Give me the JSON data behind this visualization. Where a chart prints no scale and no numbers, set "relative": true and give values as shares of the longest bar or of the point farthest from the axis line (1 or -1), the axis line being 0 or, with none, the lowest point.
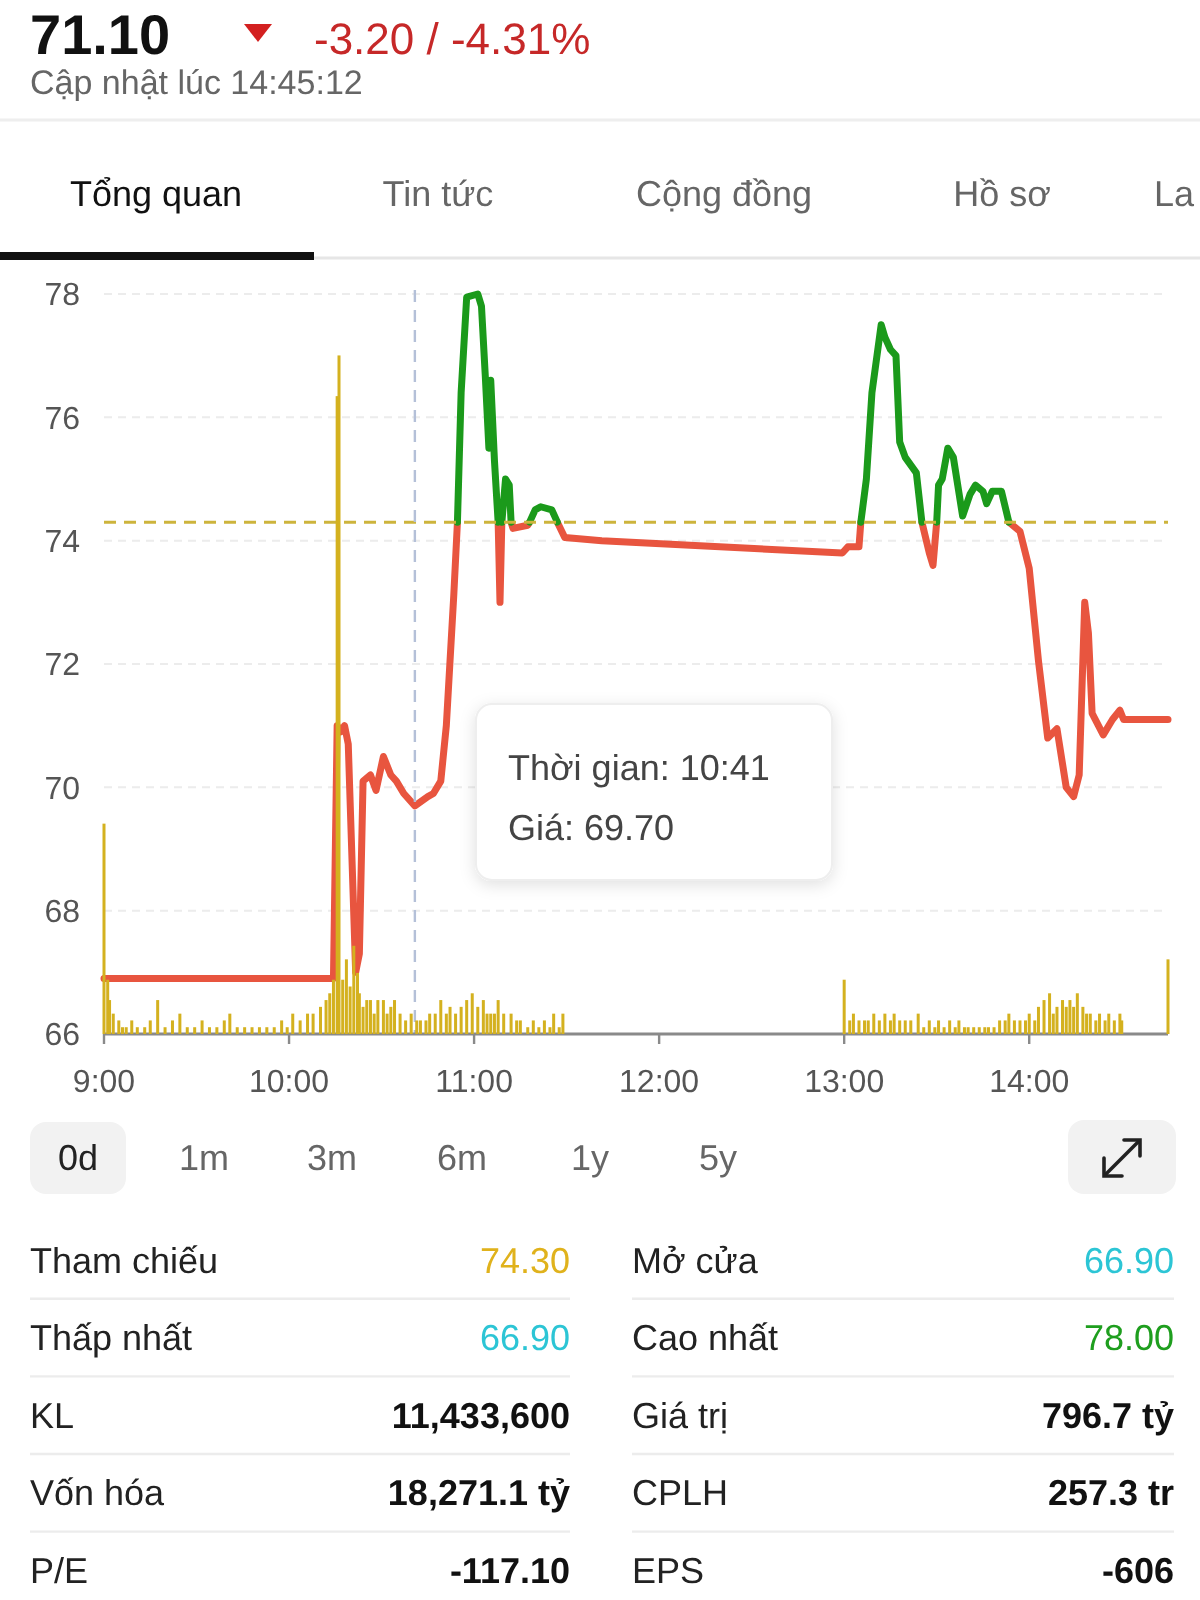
{
  "chart_data": [
    {
      "type": "other",
      "annotations": [
        "71.10",
        "-3.20 / -4.31%",
        "Cập nhật lúc 14:45:12",
        "Tổng quan",
        "Tin tức",
        "Cộng đồng",
        "Hồ sơ",
        "La"
      ]
    },
    {
      "type": "line",
      "xlim": [
        9,
        14.75
      ],
      "xticks": [
        {
          "value": 9,
          "label": "9:00"
        },
        {
          "value": 10,
          "label": "10:00"
        },
        {
          "value": 11,
          "label": "11:00"
        },
        {
          "value": 12,
          "label": "12:00"
        },
        {
          "value": 13,
          "label": "13:00"
        },
        {
          "value": 14,
          "label": "14:00"
        }
      ],
      "ylim": [
        66,
        78
      ],
      "yticks": [
        66,
        68,
        70,
        72,
        74,
        76,
        78
      ],
      "grid": "y",
      "series": [
        {
          "color": "#e8553f",
          "x": [
            9.0,
            10.24,
            10.26,
            10.28,
            10.3,
            10.32,
            10.36,
            10.38,
            10.4,
            10.44,
            10.47,
            10.51,
            10.55,
            10.58,
            10.62,
            10.68,
            10.75,
            10.78,
            10.82,
            10.85,
            10.89,
            10.91,
            11.0,
            11.13,
            11.14,
            11.15,
            11.17,
            11.2,
            11.21,
            11.29,
            11.3,
            11.38,
            11.45,
            11.49,
            11.69,
            12.99,
            13.02,
            13.08,
            13.09,
            13.25,
            13.42,
            13.46,
            13.48,
            13.5,
            13.7,
            13.89,
            13.95,
            14.0,
            14.05,
            14.1,
            14.15,
            14.2,
            14.24,
            14.27,
            14.3,
            14.32,
            14.34,
            14.4,
            14.45,
            14.49,
            14.51,
            14.75
          ],
          "values": [
            66.9,
            66.9,
            71.0,
            70.9,
            71.0,
            70.7,
            67.0,
            67.3,
            70.1,
            70.2,
            69.95,
            70.5,
            70.2,
            70.1,
            69.9,
            69.7,
            69.85,
            69.9,
            70.1,
            71.0,
            73.1,
            74.3,
            null,
            74.3,
            73.0,
            74.3,
            null,
            74.3,
            74.2,
            74.25,
            74.3,
            null,
            74.3,
            74.05,
            74.0,
            73.8,
            73.9,
            73.9,
            74.3,
            null,
            74.3,
            73.8,
            73.6,
            74.3,
            null,
            74.3,
            74.15,
            73.55,
            72.05,
            70.8,
            70.95,
            70.0,
            69.85,
            70.2,
            73.0,
            72.5,
            71.2,
            70.85,
            71.1,
            71.25,
            71.1,
            71.1
          ]
        },
        {
          "color": "#1b9a1b",
          "x": [
            10.91,
            10.93,
            10.96,
            11.02,
            11.04,
            11.06,
            11.08,
            11.09,
            11.11,
            11.13,
            11.14,
            11.15,
            11.17,
            11.19,
            11.2,
            11.25,
            11.3,
            11.33,
            11.36,
            11.42,
            11.45,
            12.5,
            13.09,
            13.12,
            13.15,
            13.2,
            13.22,
            13.25,
            13.28,
            13.3,
            13.33,
            13.39,
            13.42,
            13.46,
            13.5,
            13.51,
            13.53,
            13.56,
            13.59,
            13.64,
            13.68,
            13.71,
            13.75,
            13.77,
            13.8,
            13.85,
            13.89
          ],
          "values": [
            74.3,
            76.4,
            77.95,
            78.0,
            77.8,
            76.7,
            75.5,
            76.6,
            75.3,
            74.3,
            null,
            74.3,
            75.0,
            74.9,
            74.3,
            null,
            74.3,
            74.5,
            74.55,
            74.5,
            74.3,
            null,
            74.3,
            75.0,
            76.4,
            77.5,
            77.3,
            77.1,
            77.0,
            75.6,
            75.35,
            75.1,
            74.3,
            null,
            74.3,
            74.9,
            75.0,
            75.5,
            75.35,
            74.4,
            74.75,
            74.9,
            74.8,
            74.6,
            74.8,
            74.8,
            74.3
          ]
        }
      ],
      "ref_lines": [
        {
          "axis": "y",
          "value": 74.3,
          "color": "#cdb43c",
          "line_style": "dashed"
        },
        {
          "axis": "x",
          "value": 10.68,
          "color": "#b4c0d8",
          "line_style": "dashed"
        }
      ],
      "annotations": [
        "Thời gian: 10:41",
        "Giá: 69.70"
      ]
    },
    {
      "type": "bar",
      "relative": true,
      "xlim": [
        9,
        14.75
      ],
      "color": "#d4b11f",
      "x": [
        9.0,
        9.02,
        9.03,
        9.05,
        9.08,
        9.1,
        9.12,
        9.15,
        9.18,
        9.22,
        9.25,
        9.29,
        9.33,
        9.37,
        9.41,
        9.45,
        9.49,
        9.53,
        9.57,
        9.61,
        9.65,
        9.68,
        9.72,
        9.76,
        9.8,
        9.84,
        9.88,
        9.92,
        9.96,
        9.99,
        10.02,
        10.06,
        10.1,
        10.13,
        10.17,
        10.2,
        10.22,
        10.24,
        10.26,
        10.27,
        10.29,
        10.31,
        10.33,
        10.35,
        10.37,
        10.38,
        10.4,
        10.42,
        10.44,
        10.46,
        10.48,
        10.51,
        10.53,
        10.55,
        10.57,
        10.6,
        10.63,
        10.66,
        10.69,
        10.71,
        10.74,
        10.76,
        10.79,
        10.82,
        10.85,
        10.87,
        10.9,
        10.93,
        10.96,
        10.99,
        11.02,
        11.05,
        11.07,
        11.09,
        11.11,
        11.13,
        11.16,
        11.2,
        11.23,
        11.25,
        11.29,
        11.32,
        11.35,
        11.38,
        11.41,
        11.43,
        11.46,
        11.48,
        13.0,
        13.03,
        13.05,
        13.08,
        13.11,
        13.13,
        13.16,
        13.19,
        13.22,
        13.25,
        13.27,
        13.3,
        13.33,
        13.36,
        13.4,
        13.43,
        13.46,
        13.49,
        13.51,
        13.54,
        13.57,
        13.6,
        13.62,
        13.65,
        13.67,
        13.7,
        13.73,
        13.76,
        13.78,
        13.81,
        13.84,
        13.87,
        13.89,
        13.92,
        13.95,
        13.98,
        14.0,
        14.03,
        14.05,
        14.08,
        14.11,
        14.13,
        14.15,
        14.18,
        14.2,
        14.22,
        14.24,
        14.26,
        14.29,
        14.31,
        14.33,
        14.36,
        14.38,
        14.41,
        14.43,
        14.46,
        14.49,
        14.5,
        14.75
      ],
      "values": [
        0.31,
        0.08,
        0.05,
        0.03,
        0.02,
        0.01,
        0.01,
        0.02,
        0.01,
        0.01,
        0.02,
        0.05,
        0.01,
        0.02,
        0.03,
        0.01,
        0.01,
        0.02,
        0.01,
        0.01,
        0.02,
        0.03,
        0.01,
        0.01,
        0.01,
        0.01,
        0.01,
        0.01,
        0.02,
        0.01,
        0.03,
        0.02,
        0.03,
        0.03,
        0.04,
        0.05,
        0.06,
        0.08,
        0.94,
        1.0,
        0.08,
        0.11,
        0.07,
        0.13,
        0.09,
        0.06,
        0.04,
        0.05,
        0.05,
        0.03,
        0.05,
        0.05,
        0.03,
        0.04,
        0.05,
        0.03,
        0.02,
        0.03,
        0.02,
        0.02,
        0.02,
        0.03,
        0.03,
        0.05,
        0.03,
        0.04,
        0.03,
        0.04,
        0.05,
        0.06,
        0.04,
        0.05,
        0.03,
        0.03,
        0.03,
        0.05,
        0.03,
        0.03,
        0.02,
        0.02,
        0.01,
        0.02,
        0.01,
        0.02,
        0.01,
        0.03,
        0.01,
        0.03,
        0.08,
        0.02,
        0.03,
        0.02,
        0.02,
        0.02,
        0.03,
        0.02,
        0.03,
        0.02,
        0.03,
        0.02,
        0.02,
        0.02,
        0.03,
        0.01,
        0.02,
        0.01,
        0.02,
        0.01,
        0.02,
        0.01,
        0.02,
        0.01,
        0.01,
        0.01,
        0.01,
        0.01,
        0.01,
        0.01,
        0.02,
        0.02,
        0.03,
        0.02,
        0.02,
        0.02,
        0.03,
        0.02,
        0.04,
        0.05,
        0.06,
        0.03,
        0.04,
        0.05,
        0.04,
        0.05,
        0.04,
        0.06,
        0.04,
        0.03,
        0.03,
        0.02,
        0.03,
        0.02,
        0.03,
        0.02,
        0.03,
        0.02,
        0.11
      ]
    },
    {
      "type": "other",
      "annotations": [
        "0d",
        "1m",
        "3m",
        "6m",
        "1y",
        "5y"
      ],
      "categories": [
        "Tham chiếu",
        "Mở cửa",
        "Thấp nhất",
        "Cao nhất",
        "KL",
        "Giá trị",
        "Vốn hóa",
        "CPLH",
        "P/E",
        "EPS"
      ],
      "value_labels": [
        "74.30",
        "66.90",
        "66.90",
        "78.00",
        "11,433,600",
        "796.7 tỷ",
        "18,271.1 tỷ",
        "257.3 tr",
        "-117.10",
        "-606"
      ],
      "colors": [
        "#e0b21c",
        "#2cc5d5",
        "#2cc5d5",
        "#1e9e1e",
        "#111111",
        "#111111",
        "#111111",
        "#111111",
        "#111111",
        "#111111"
      ]
    }
  ]
}
